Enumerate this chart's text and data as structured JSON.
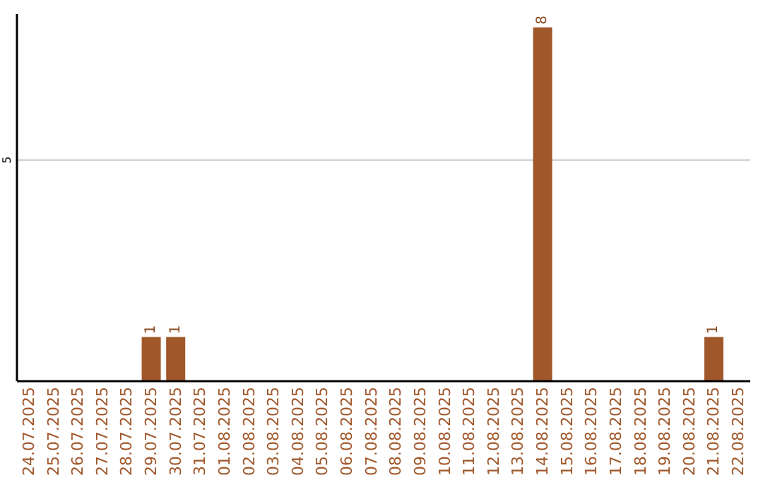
{
  "chart_data": {
    "type": "bar",
    "categories": [
      "24.07.2025",
      "25.07.2025",
      "26.07.2025",
      "27.07.2025",
      "28.07.2025",
      "29.07.2025",
      "30.07.2025",
      "31.07.2025",
      "01.08.2025",
      "02.08.2025",
      "03.08.2025",
      "04.08.2025",
      "05.08.2025",
      "06.08.2025",
      "07.08.2025",
      "08.08.2025",
      "09.08.2025",
      "10.08.2025",
      "11.08.2025",
      "12.08.2025",
      "13.08.2025",
      "14.08.2025",
      "15.08.2025",
      "16.08.2025",
      "17.08.2025",
      "18.08.2025",
      "19.08.2025",
      "20.08.2025",
      "21.08.2025",
      "22.08.2025"
    ],
    "values": [
      0,
      0,
      0,
      0,
      0,
      1,
      1,
      0,
      0,
      0,
      0,
      0,
      0,
      0,
      0,
      0,
      0,
      0,
      0,
      0,
      0,
      8,
      0,
      0,
      0,
      0,
      0,
      0,
      1,
      0
    ],
    "value_labels": [
      null,
      null,
      null,
      null,
      null,
      "1",
      "1",
      null,
      null,
      null,
      null,
      null,
      null,
      null,
      null,
      null,
      null,
      null,
      null,
      null,
      null,
      "8",
      null,
      null,
      null,
      null,
      null,
      null,
      "1",
      null
    ],
    "color": "#a0572a",
    "ylim": [
      0,
      8.3
    ],
    "yticks": [
      5
    ],
    "grid": "y"
  }
}
